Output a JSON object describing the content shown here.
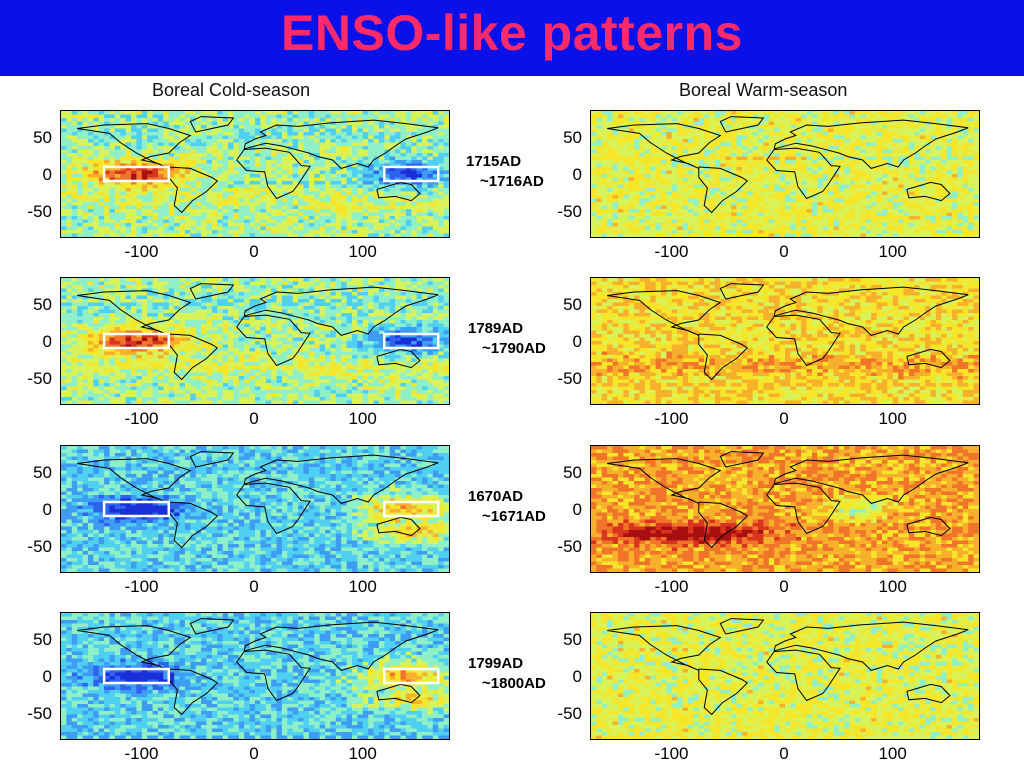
{
  "title": "ENSO-like patterns",
  "columns": {
    "left": "Boreal Cold-season",
    "right": "Boreal Warm-season"
  },
  "axis": {
    "yticks": [
      "50",
      "0",
      "-50"
    ],
    "xticks": [
      "-100",
      "0",
      "100"
    ]
  },
  "rows": [
    {
      "label1": "1715AD",
      "label2": "~1716AD",
      "cold": "warm-east",
      "warm": "mixed"
    },
    {
      "label1": "1789AD",
      "label2": "~1790AD",
      "cold": "warm-east",
      "warm": "mixed-warm"
    },
    {
      "label1": "1670AD",
      "label2": "~1671AD",
      "cold": "cool-east",
      "warm": "warm-south"
    },
    {
      "label1": "1799AD",
      "label2": "~1800AD",
      "cold": "cool-east",
      "warm": "mixed"
    }
  ],
  "colors": {
    "title_bg": "#0a10e8",
    "title_text": "#ff2a6a",
    "box": "#ffffff"
  }
}
